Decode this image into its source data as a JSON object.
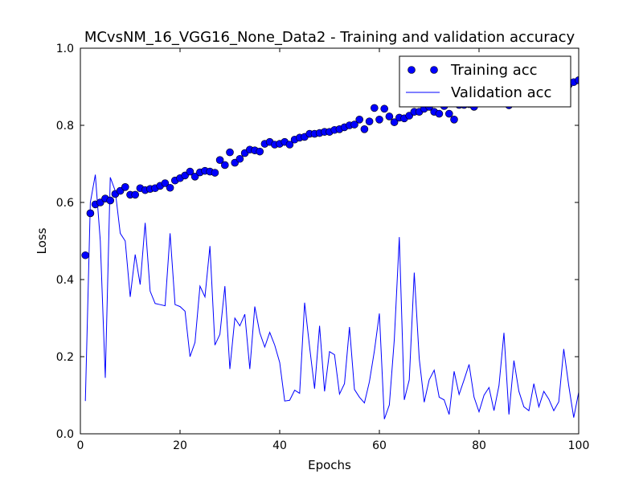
{
  "chart_data": {
    "type": "line",
    "title": "MCvsNM_16_VGG16_None_Data2 - Training and validation accuracy",
    "xlabel": "Epochs",
    "ylabel": "Loss",
    "xlim": [
      0,
      100
    ],
    "ylim": [
      0.0,
      1.0
    ],
    "x_ticks": [
      "0",
      "20",
      "40",
      "60",
      "80",
      "100"
    ],
    "y_ticks": [
      "0.0",
      "0.2",
      "0.4",
      "0.6",
      "0.8",
      "1.0"
    ],
    "grid": false,
    "legend_position": "top-right",
    "series": [
      {
        "name": "Training acc",
        "style": "markers",
        "color": "#0000ff",
        "x": [
          1,
          2,
          3,
          4,
          5,
          6,
          7,
          8,
          9,
          10,
          11,
          12,
          13,
          14,
          15,
          16,
          17,
          18,
          19,
          20,
          21,
          22,
          23,
          24,
          25,
          26,
          27,
          28,
          29,
          30,
          31,
          32,
          33,
          34,
          35,
          36,
          37,
          38,
          39,
          40,
          41,
          42,
          43,
          44,
          45,
          46,
          47,
          48,
          49,
          50,
          51,
          52,
          53,
          54,
          55,
          56,
          57,
          58,
          59,
          60,
          61,
          62,
          63,
          64,
          65,
          66,
          67,
          68,
          69,
          70,
          71,
          72,
          73,
          74,
          75,
          76,
          77,
          78,
          79,
          80,
          81,
          82,
          83,
          84,
          85,
          86,
          87,
          88,
          89,
          90,
          91,
          92,
          93,
          94,
          95,
          96,
          97,
          98,
          99,
          100
        ],
        "values": [
          0.463,
          0.572,
          0.595,
          0.6,
          0.61,
          0.605,
          0.622,
          0.63,
          0.64,
          0.62,
          0.62,
          0.637,
          0.632,
          0.635,
          0.637,
          0.643,
          0.65,
          0.638,
          0.657,
          0.663,
          0.67,
          0.68,
          0.667,
          0.678,
          0.682,
          0.68,
          0.677,
          0.71,
          0.697,
          0.73,
          0.703,
          0.713,
          0.728,
          0.737,
          0.735,
          0.732,
          0.752,
          0.757,
          0.75,
          0.752,
          0.757,
          0.75,
          0.763,
          0.768,
          0.77,
          0.778,
          0.778,
          0.78,
          0.783,
          0.783,
          0.788,
          0.79,
          0.795,
          0.8,
          0.802,
          0.815,
          0.79,
          0.81,
          0.845,
          0.815,
          0.843,
          0.823,
          0.808,
          0.82,
          0.818,
          0.825,
          0.835,
          0.835,
          0.843,
          0.848,
          0.835,
          0.83,
          0.85,
          0.83,
          0.815,
          0.853,
          0.853,
          0.855,
          0.848,
          0.86,
          0.86,
          0.86,
          0.862,
          0.865,
          0.865,
          0.852,
          0.868,
          0.87,
          0.872,
          0.875,
          0.88,
          0.882,
          0.885,
          0.888,
          0.89,
          0.895,
          0.9,
          0.905,
          0.912,
          0.917
        ]
      },
      {
        "name": "Validation acc",
        "style": "line",
        "color": "#0000ff",
        "x": [
          1,
          2,
          3,
          4,
          5,
          6,
          7,
          8,
          9,
          10,
          11,
          12,
          13,
          14,
          15,
          16,
          17,
          18,
          19,
          20,
          21,
          22,
          23,
          24,
          25,
          26,
          27,
          28,
          29,
          30,
          31,
          32,
          33,
          34,
          35,
          36,
          37,
          38,
          39,
          40,
          41,
          42,
          43,
          44,
          45,
          46,
          47,
          48,
          49,
          50,
          51,
          52,
          53,
          54,
          55,
          56,
          57,
          58,
          59,
          60,
          61,
          62,
          63,
          64,
          65,
          66,
          67,
          68,
          69,
          70,
          71,
          72,
          73,
          74,
          75,
          76,
          77,
          78,
          79,
          80,
          81,
          82,
          83,
          84,
          85,
          86,
          87,
          88,
          89,
          90,
          91,
          92,
          93,
          94,
          95,
          96,
          97,
          98,
          99,
          100
        ],
        "values": [
          0.085,
          0.6,
          0.672,
          0.5,
          0.145,
          0.665,
          0.63,
          0.52,
          0.5,
          0.355,
          0.465,
          0.387,
          0.547,
          0.37,
          0.338,
          0.335,
          0.332,
          0.52,
          0.335,
          0.33,
          0.318,
          0.2,
          0.237,
          0.383,
          0.355,
          0.487,
          0.23,
          0.258,
          0.383,
          0.168,
          0.3,
          0.28,
          0.31,
          0.168,
          0.33,
          0.262,
          0.225,
          0.263,
          0.23,
          0.185,
          0.085,
          0.087,
          0.113,
          0.105,
          0.34,
          0.225,
          0.117,
          0.28,
          0.11,
          0.213,
          0.205,
          0.103,
          0.13,
          0.277,
          0.115,
          0.095,
          0.08,
          0.135,
          0.215,
          0.312,
          0.038,
          0.075,
          0.245,
          0.51,
          0.088,
          0.14,
          0.418,
          0.195,
          0.082,
          0.14,
          0.165,
          0.095,
          0.088,
          0.05,
          0.162,
          0.102,
          0.14,
          0.18,
          0.095,
          0.057,
          0.1,
          0.12,
          0.06,
          0.125,
          0.262,
          0.05,
          0.19,
          0.11,
          0.07,
          0.06,
          0.13,
          0.07,
          0.11,
          0.09,
          0.06,
          0.083,
          0.22,
          0.125,
          0.042,
          0.108
        ]
      }
    ]
  }
}
